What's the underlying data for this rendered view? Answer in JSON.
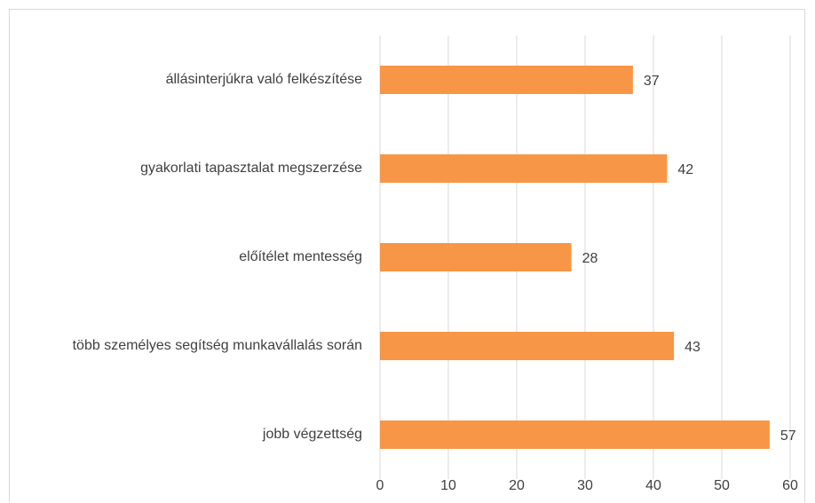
{
  "chart_data": {
    "type": "bar",
    "orientation": "horizontal",
    "categories": [
      "állásinterjúkra való felkészítése",
      "gyakorlati tapasztalat megszerzése",
      "előítélet mentesség",
      "több személyes segítség munkavállalás során",
      "jobb végzettség"
    ],
    "values": [
      37,
      42,
      28,
      43,
      57
    ],
    "color": "#f79646",
    "xlim": [
      0,
      60
    ],
    "xticks": [
      0,
      10,
      20,
      30,
      40,
      50,
      60
    ],
    "grid": true
  }
}
